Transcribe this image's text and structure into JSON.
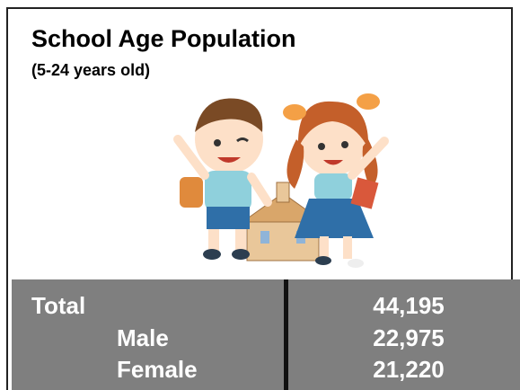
{
  "header": {
    "title": "School Age Population",
    "subtitle": "(5-24 years old)"
  },
  "table": {
    "rows": [
      [
        "Total",
        "44,195"
      ],
      [
        "Male",
        "22,975"
      ],
      [
        "Female",
        "21,220"
      ]
    ]
  }
}
